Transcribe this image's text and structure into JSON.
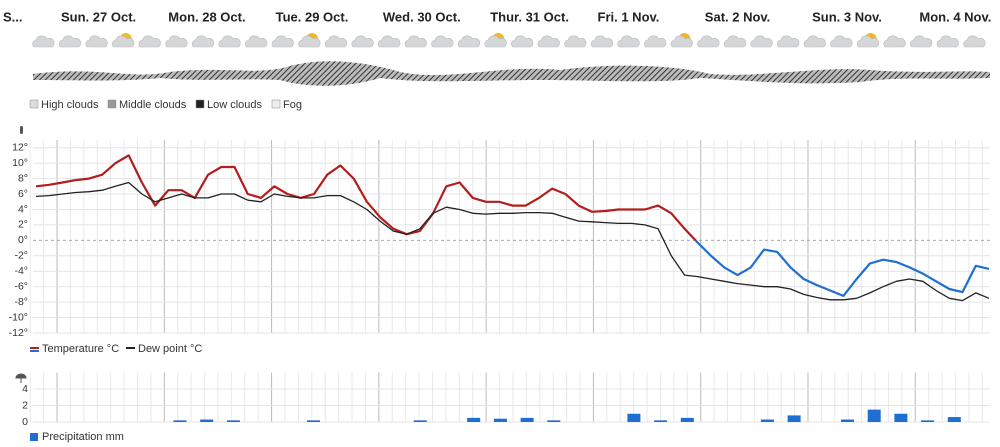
{
  "days": [
    "S...",
    "Sun. 27 Oct.",
    "Mon. 28 Oct.",
    "Tue. 29 Oct.",
    "Wed. 30 Oct.",
    "Thur. 31 Oct.",
    "Fri. 1 Nov.",
    "Sat. 2 Nov.",
    "Sun. 3 Nov.",
    "Mon. 4 Nov."
  ],
  "cloud_legend": [
    "High clouds",
    "Middle clouds",
    "Low clouds",
    "Fog"
  ],
  "chart_data": [
    {
      "type": "line",
      "ylim": [
        -12,
        13
      ],
      "grid": true,
      "yticks": [
        {
          "value": 12,
          "label": "12°"
        },
        {
          "value": 10,
          "label": "10°"
        },
        {
          "value": 8,
          "label": "8°"
        },
        {
          "value": 6,
          "label": "6°"
        },
        {
          "value": 4,
          "label": "4°"
        },
        {
          "value": 2,
          "label": "2°"
        },
        {
          "value": 0,
          "label": "0°"
        },
        {
          "value": -2,
          "label": "-2°"
        },
        {
          "value": -4,
          "label": "-4°"
        },
        {
          "value": -6,
          "label": "-6°"
        },
        {
          "value": -8,
          "label": "-8°"
        },
        {
          "value": -10,
          "label": "-10°"
        },
        {
          "value": -12,
          "label": "-12°"
        }
      ],
      "series": [
        {
          "name": "Temperature °C",
          "color": "#b31d1d",
          "negative_color": "#1f6fd1",
          "values": [
            7,
            7.2,
            7.5,
            7.8,
            8,
            8.5,
            10,
            11,
            7.5,
            4.5,
            6.5,
            6.5,
            5.5,
            8.5,
            9.5,
            9.5,
            6,
            5.5,
            7,
            6,
            5.5,
            6,
            8.5,
            9.7,
            8,
            5,
            3,
            1.5,
            0.8,
            1.2,
            3.5,
            7,
            7.5,
            5.5,
            5,
            5,
            4.5,
            4.5,
            5.5,
            6.7,
            6,
            4.5,
            3.7,
            3.8,
            4,
            4,
            4,
            4.5,
            3.5,
            1.5,
            -0.3,
            -2,
            -3.5,
            -4.5,
            -3.5,
            -1.2,
            -1.5,
            -3.5,
            -5,
            -5.8,
            -6.5,
            -7.2,
            -5,
            -3,
            -2.5,
            -2.8,
            -3.5,
            -4.3,
            -5.3,
            -6.3,
            -6.7,
            -3.3,
            -3.7
          ]
        },
        {
          "name": "Dew point °C",
          "color": "#222222",
          "values": [
            5.7,
            5.8,
            6,
            6.2,
            6.3,
            6.5,
            7,
            7.5,
            6,
            5,
            5.5,
            6,
            5.5,
            5.5,
            6,
            6,
            5.2,
            5,
            6,
            5.7,
            5.5,
            5.5,
            5.8,
            5.8,
            5,
            4,
            2.5,
            1.2,
            0.8,
            1.5,
            3.5,
            4.3,
            4,
            3.5,
            3.4,
            3.5,
            3.5,
            3.6,
            3.6,
            3.5,
            3,
            2.5,
            2.4,
            2.3,
            2.2,
            2.2,
            2,
            1.5,
            -2,
            -4.5,
            -4.7,
            -5,
            -5.3,
            -5.6,
            -5.8,
            -6,
            -6,
            -6.3,
            -7,
            -7.4,
            -7.7,
            -7.7,
            -7.5,
            -6.8,
            -6,
            -5.3,
            -5,
            -5.3,
            -6.5,
            -7.5,
            -7.8,
            -6.8,
            -7.5
          ]
        }
      ]
    },
    {
      "type": "bar",
      "ylim": [
        0,
        6
      ],
      "grid": true,
      "yticks": [
        0,
        2,
        4
      ],
      "series": [
        {
          "name": "Precipitation mm",
          "color": "#1f6fd1",
          "values": [
            0,
            0,
            0,
            0,
            0,
            0.2,
            0.3,
            0.2,
            0,
            0,
            0.2,
            0,
            0,
            0,
            0.2,
            0,
            0.5,
            0.4,
            0.5,
            0.2,
            0,
            0,
            1,
            0.2,
            0.5,
            0,
            0,
            0.3,
            0.8,
            0,
            0.3,
            1.5,
            1,
            0.2,
            0.6,
            0
          ]
        }
      ]
    }
  ]
}
